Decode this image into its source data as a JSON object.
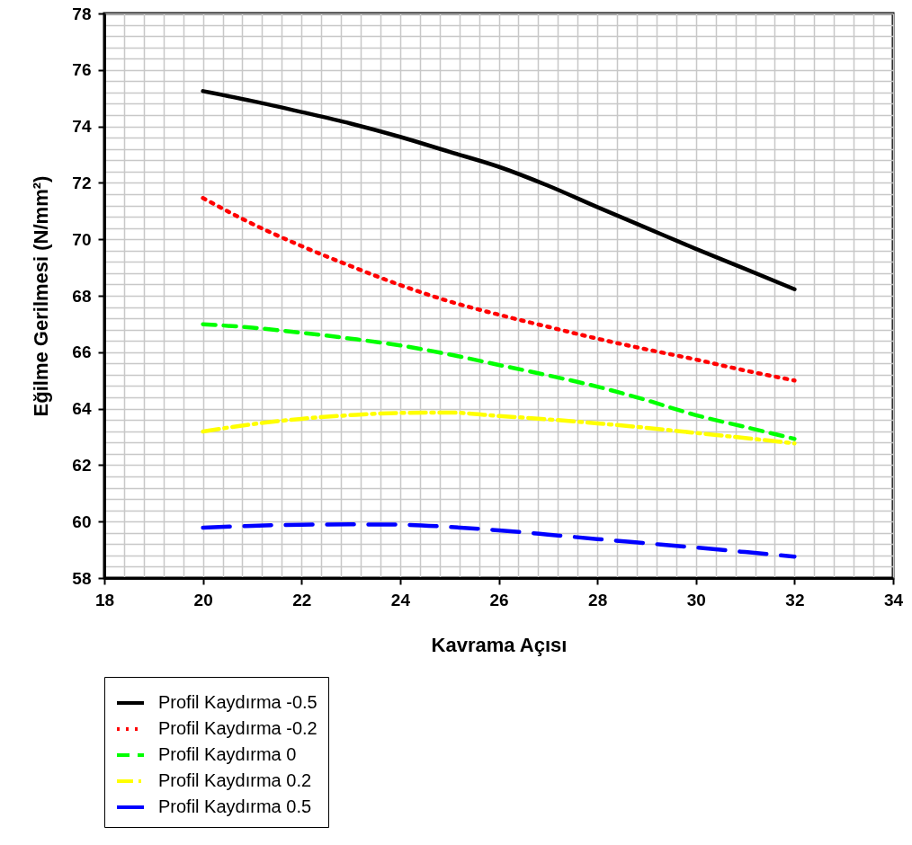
{
  "chart_data": {
    "type": "line",
    "xlabel": "Kavrama Açısı",
    "ylabel": "Eğilme Gerilmesi (N/mm²)",
    "x": [
      20,
      21,
      22,
      23,
      24,
      25,
      26,
      27,
      28,
      29,
      30,
      31,
      32
    ],
    "series": [
      {
        "name": "Profil Kaydırma -0.5",
        "color": "#000000",
        "line_style": "solid",
        "values": [
          75.25,
          74.9,
          74.51,
          74.1,
          73.63,
          73.1,
          72.57,
          71.9,
          71.14,
          70.4,
          69.66,
          68.95,
          68.23
        ]
      },
      {
        "name": "Profil Kaydırma -0.2",
        "color": "#ff0000",
        "line_style": "dotted",
        "values": [
          71.46,
          70.55,
          69.76,
          69.05,
          68.38,
          67.8,
          67.33,
          66.9,
          66.48,
          66.1,
          65.74,
          65.35,
          65.0
        ]
      },
      {
        "name": "Profil Kaydırma 0",
        "color": "#00ff00",
        "line_style": "dashed",
        "values": [
          66.99,
          66.87,
          66.69,
          66.48,
          66.24,
          65.92,
          65.55,
          65.18,
          64.78,
          64.3,
          63.77,
          63.35,
          62.93
        ]
      },
      {
        "name": "Profil Kaydırma 0.2",
        "color": "#ffff00",
        "line_style": "dashdot",
        "values": [
          63.19,
          63.45,
          63.64,
          63.77,
          63.85,
          63.86,
          63.74,
          63.62,
          63.48,
          63.32,
          63.14,
          62.96,
          62.77
        ]
      },
      {
        "name": "Profil Kaydırma 0.5",
        "color": "#0000ff",
        "line_style": "longdash",
        "values": [
          59.78,
          59.85,
          59.89,
          59.9,
          59.89,
          59.81,
          59.69,
          59.54,
          59.38,
          59.23,
          59.08,
          58.92,
          58.76
        ]
      }
    ],
    "xlim": [
      18,
      34
    ],
    "xticks": [
      18,
      {
        "value": 18.4,
        "label": null
      },
      {
        "value": 18.8,
        "label": null
      },
      {
        "value": 19.2,
        "label": null
      },
      {
        "value": 19.6,
        "label": null
      },
      20,
      {
        "value": 20.4,
        "label": null
      },
      {
        "value": 20.8,
        "label": null
      },
      {
        "value": 21.2,
        "label": null
      },
      {
        "value": 21.6,
        "label": null
      },
      22,
      {
        "value": 22.4,
        "label": null
      },
      {
        "value": 22.8,
        "label": null
      },
      {
        "value": 23.2,
        "label": null
      },
      {
        "value": 23.6,
        "label": null
      },
      24,
      {
        "value": 24.4,
        "label": null
      },
      {
        "value": 24.8,
        "label": null
      },
      {
        "value": 25.2,
        "label": null
      },
      {
        "value": 25.6,
        "label": null
      },
      26,
      {
        "value": 26.4,
        "label": null
      },
      {
        "value": 26.8,
        "label": null
      },
      {
        "value": 27.2,
        "label": null
      },
      {
        "value": 27.6,
        "label": null
      },
      28,
      {
        "value": 28.4,
        "label": null
      },
      {
        "value": 28.8,
        "label": null
      },
      {
        "value": 29.2,
        "label": null
      },
      {
        "value": 29.6,
        "label": null
      },
      30,
      {
        "value": 30.4,
        "label": null
      },
      {
        "value": 30.8,
        "label": null
      },
      {
        "value": 31.2,
        "label": null
      },
      {
        "value": 31.6,
        "label": null
      },
      32,
      {
        "value": 32.4,
        "label": null
      },
      {
        "value": 32.8,
        "label": null
      },
      {
        "value": 33.2,
        "label": null
      },
      {
        "value": 33.6,
        "label": null
      },
      34
    ],
    "ylim": [
      58,
      78
    ],
    "yticks": [
      58,
      {
        "value": 58.4,
        "label": null
      },
      {
        "value": 58.8,
        "label": null
      },
      {
        "value": 59.2,
        "label": null
      },
      {
        "value": 59.6,
        "label": null
      },
      60,
      {
        "value": 60.4,
        "label": null
      },
      {
        "value": 60.8,
        "label": null
      },
      {
        "value": 61.2,
        "label": null
      },
      {
        "value": 61.6,
        "label": null
      },
      62,
      {
        "value": 62.4,
        "label": null
      },
      {
        "value": 62.8,
        "label": null
      },
      {
        "value": 63.2,
        "label": null
      },
      {
        "value": 63.6,
        "label": null
      },
      64,
      {
        "value": 64.4,
        "label": null
      },
      {
        "value": 64.8,
        "label": null
      },
      {
        "value": 65.2,
        "label": null
      },
      {
        "value": 65.6,
        "label": null
      },
      66,
      {
        "value": 66.4,
        "label": null
      },
      {
        "value": 66.8,
        "label": null
      },
      {
        "value": 67.2,
        "label": null
      },
      {
        "value": 67.6,
        "label": null
      },
      68,
      {
        "value": 68.4,
        "label": null
      },
      {
        "value": 68.8,
        "label": null
      },
      {
        "value": 69.2,
        "label": null
      },
      {
        "value": 69.6,
        "label": null
      },
      70,
      {
        "value": 70.4,
        "label": null
      },
      {
        "value": 70.8,
        "label": null
      },
      {
        "value": 71.2,
        "label": null
      },
      {
        "value": 71.6,
        "label": null
      },
      72,
      {
        "value": 72.4,
        "label": null
      },
      {
        "value": 72.8,
        "label": null
      },
      {
        "value": 73.2,
        "label": null
      },
      {
        "value": 73.6,
        "label": null
      },
      74,
      {
        "value": 74.4,
        "label": null
      },
      {
        "value": 74.8,
        "label": null
      },
      {
        "value": 75.2,
        "label": null
      },
      {
        "value": 75.6,
        "label": null
      },
      76,
      {
        "value": 76.4,
        "label": null
      },
      {
        "value": 76.8,
        "label": null
      },
      {
        "value": 77.2,
        "label": null
      },
      {
        "value": 77.6,
        "label": null
      },
      78
    ],
    "grid": true,
    "legend": "bottom left"
  }
}
